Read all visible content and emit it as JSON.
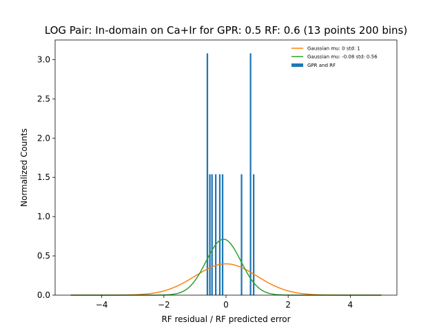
{
  "chart_data": {
    "type": "bar",
    "title": "LOG Pair: In-domain on Ca+Ir for GPR: 0.5 RF: 0.6 (13 points 200 bins)",
    "xlabel": "RF residual / RF predicted error",
    "ylabel": "Normalized Counts",
    "xlim": [
      -5.5,
      5.5
    ],
    "ylim": [
      0,
      3.25
    ],
    "xticks": [
      -4,
      -2,
      0,
      2,
      4
    ],
    "xtick_labels": [
      "−4",
      "−2",
      "0",
      "2",
      "4"
    ],
    "yticks": [
      0.0,
      0.5,
      1.0,
      1.5,
      2.0,
      2.5,
      3.0
    ],
    "ytick_labels": [
      "0.0",
      "0.5",
      "1.0",
      "1.5",
      "2.0",
      "2.5",
      "3.0"
    ],
    "grid": false,
    "legend_position": "top-right",
    "bar_width": 0.05,
    "histogram": {
      "name": "GPR and RF",
      "color": "#1f77b4",
      "bins": [
        {
          "x": -0.6,
          "value": 3.08
        },
        {
          "x": -0.52,
          "value": 1.54
        },
        {
          "x": -0.45,
          "value": 1.54
        },
        {
          "x": -0.33,
          "value": 1.54
        },
        {
          "x": -0.2,
          "value": 1.54
        },
        {
          "x": -0.11,
          "value": 1.54
        },
        {
          "x": 0.5,
          "value": 1.54
        },
        {
          "x": 0.79,
          "value": 3.08
        },
        {
          "x": 0.89,
          "value": 1.54
        }
      ]
    },
    "series": [
      {
        "name": "Gaussian mu: 0 std: 1",
        "mu": 0,
        "std": 1,
        "color": "#ff7f0e",
        "x_range": [
          -5,
          5
        ]
      },
      {
        "name": "Gaussian mu: -0.08 std: 0.56",
        "mu": -0.08,
        "std": 0.56,
        "color": "#2ca02c",
        "x_range": [
          -5,
          5
        ]
      }
    ]
  }
}
